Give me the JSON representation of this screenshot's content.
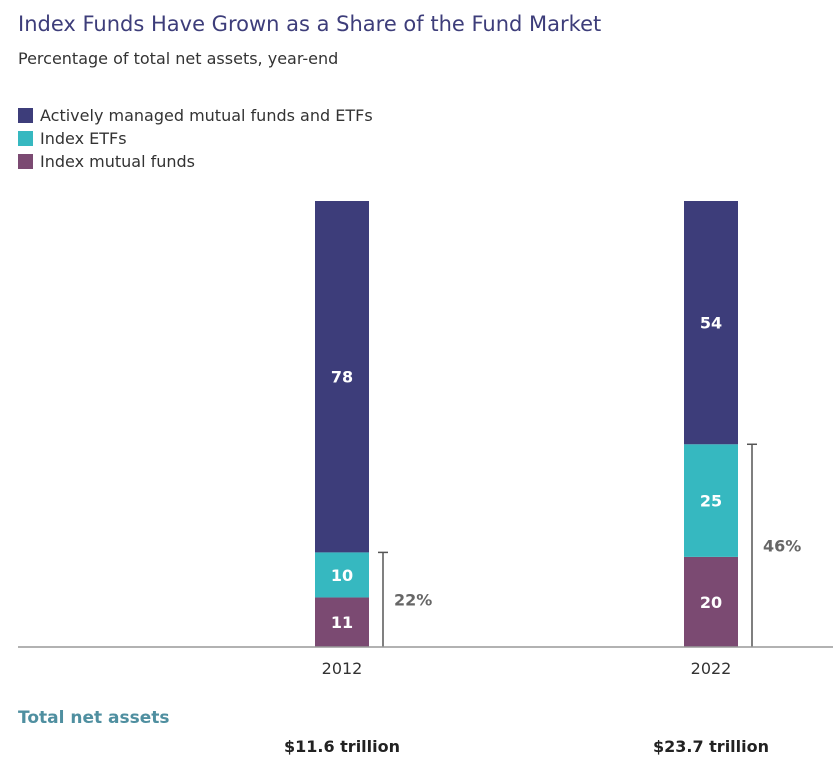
{
  "header": {
    "title": "Index Funds Have Grown as a Share of the Fund Market",
    "subtitle": "Percentage of total net assets, year-end"
  },
  "legend": [
    {
      "label": "Actively managed mutual funds and ETFs",
      "color": "#3d3d7a"
    },
    {
      "label": "Index ETFs",
      "color": "#36b8c0"
    },
    {
      "label": "Index mutual funds",
      "color": "#7b4a72"
    }
  ],
  "chart_data": {
    "type": "bar",
    "stacked": true,
    "title": "Index Funds Have Grown as a Share of the Fund Market",
    "subtitle": "Percentage of total net assets, year-end",
    "categories": [
      "2012",
      "2022"
    ],
    "series": [
      {
        "name": "Index mutual funds",
        "values": [
          11,
          20
        ],
        "color": "#7b4a72"
      },
      {
        "name": "Index ETFs",
        "values": [
          10,
          25
        ],
        "color": "#36b8c0"
      },
      {
        "name": "Actively managed mutual funds and ETFs",
        "values": [
          78,
          54
        ],
        "color": "#3d3d7a"
      }
    ],
    "brackets": [
      "22%",
      "46%"
    ],
    "ylim": [
      0,
      100
    ],
    "grid": false,
    "legend_position": "top-left"
  },
  "totals": {
    "heading": "Total net assets",
    "values": [
      "$11.6 trillion",
      "$23.7 trillion"
    ]
  }
}
